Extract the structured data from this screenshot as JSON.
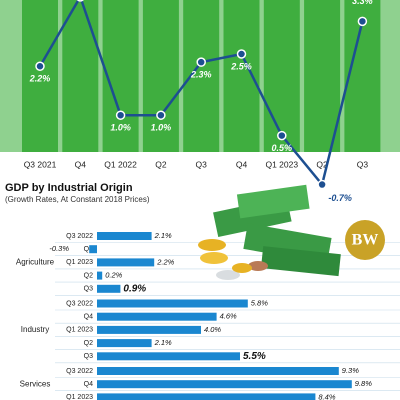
{
  "chart_data": [
    {
      "type": "line",
      "categories": [
        "Q3 2021",
        "Q4",
        "Q1 2022",
        "Q2",
        "Q3",
        "Q4",
        "Q1 2023",
        "Q2",
        "Q3"
      ],
      "values": [
        2.2,
        3.9,
        1.0,
        1.0,
        2.3,
        2.5,
        0.5,
        -0.7,
        3.3
      ],
      "value_labels": [
        "2.2%",
        null,
        "1.0%",
        "1.0%",
        "2.3%",
        "2.5%",
        "0.5%",
        "-0.7%",
        "3.3%"
      ],
      "color": "#1d4f91"
    },
    {
      "type": "hbar",
      "title": "GDP by Industrial Origin",
      "subtitle": "(Growth Rates, At Constant 2018 Prices)",
      "color": "#1a87d0",
      "groups": [
        {
          "name": "Agriculture",
          "categories": [
            "Q3 2022",
            "Q4",
            "Q1 2023",
            "Q2",
            "Q3"
          ],
          "values": [
            2.1,
            -0.3,
            2.2,
            0.2,
            0.9
          ],
          "value_labels": [
            "2.1%",
            "-0.3%",
            "2.2%",
            "0.2%",
            "0.9%"
          ]
        },
        {
          "name": "Industry",
          "categories": [
            "Q3 2022",
            "Q4",
            "Q1 2023",
            "Q2",
            "Q3"
          ],
          "values": [
            5.8,
            4.6,
            4.0,
            2.1,
            5.5
          ],
          "value_labels": [
            "5.8%",
            "4.6%",
            "4.0%",
            "2.1%",
            "5.5%"
          ]
        },
        {
          "name": "Services",
          "categories": [
            "Q3 2022",
            "Q4",
            "Q1 2023"
          ],
          "values": [
            9.3,
            9.8,
            8.4
          ],
          "value_labels": [
            "9.3%",
            "9.8%",
            "8.4%"
          ]
        }
      ]
    }
  ],
  "logo": "BW"
}
